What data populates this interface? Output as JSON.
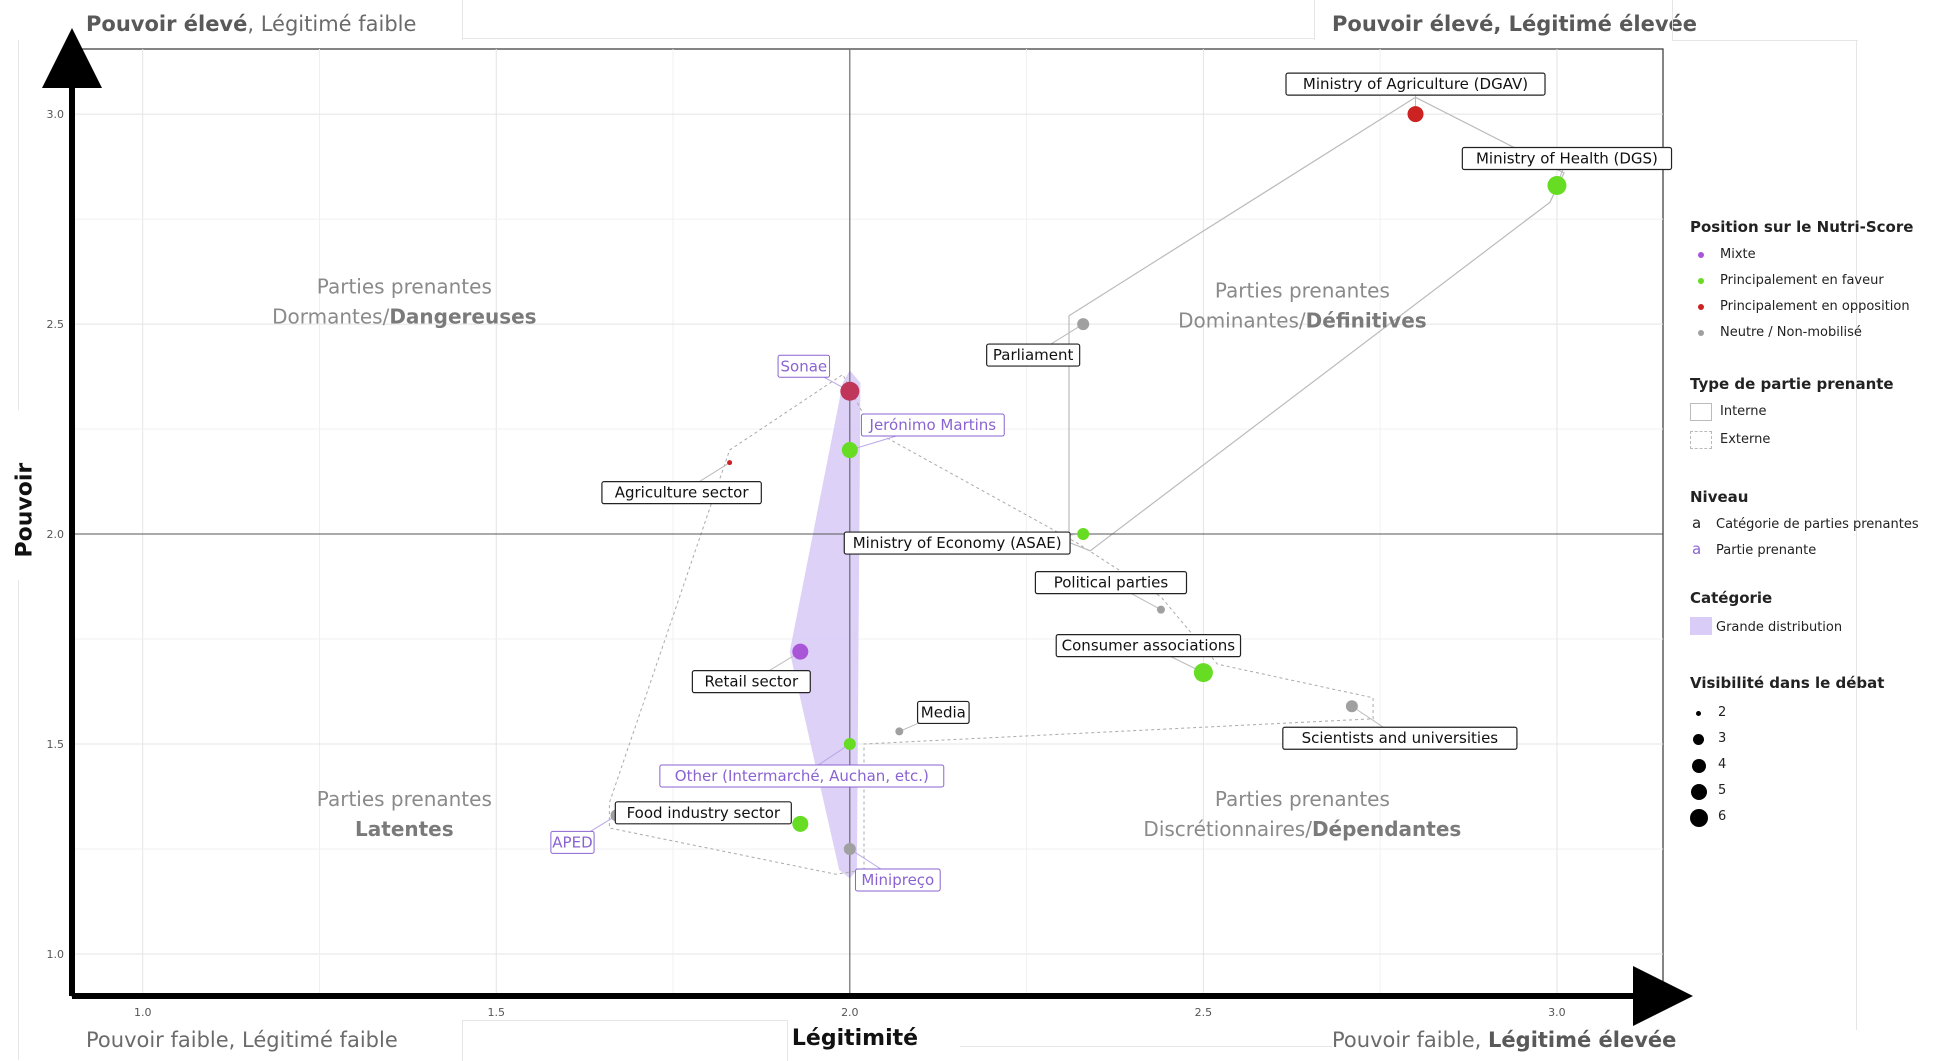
{
  "corners": {
    "top_left": {
      "strong": "Pouvoir élevé",
      "rest": ", Légitimé faible"
    },
    "top_right": {
      "strong": "Pouvoir élevé, Légitimé élevée",
      "rest": ""
    },
    "bottom_left": {
      "strong": "",
      "rest": "Pouvoir faible, Légitimé faible"
    },
    "bottom_right": {
      "prefix": "Pouvoir faible, ",
      "strong": "Légitimé élevée"
    }
  },
  "quadrant_labels": [
    {
      "id": "tl",
      "line1": "Parties prenantes",
      "line2_a": "Dormantes/",
      "line2_b": "Dangereuses"
    },
    {
      "id": "tr",
      "line1": "Parties prenantes",
      "line2_a": "Dominantes/",
      "line2_b": "Définitives"
    },
    {
      "id": "bl",
      "line1": "Parties prenantes",
      "line2_a": "",
      "line2_b": "Latentes"
    },
    {
      "id": "br",
      "line1": "Parties prenantes",
      "line2_a": "Discrétionnaires/",
      "line2_b": "Dépendantes"
    }
  ],
  "colors": {
    "mixte": "#a855d8",
    "faveur": "#66dd22",
    "opposition": "#cc2222",
    "neutre": "#a0a0a0",
    "grande_distribution": "#d9ccf7",
    "partie_prenante_text": "#8a63d2"
  },
  "chart_data": {
    "type": "scatter",
    "xlabel": "Légitimité",
    "ylabel": "Pouvoir",
    "xlim": [
      0.9,
      3.15
    ],
    "ylim": [
      0.9,
      3.155
    ],
    "x_ticks": [
      "1.0",
      "1.5",
      "2.0",
      "2.5",
      "3.0"
    ],
    "y_ticks": [
      "1.0",
      "1.5",
      "2.0",
      "2.5",
      "3.0"
    ],
    "x_tick_values": [
      1.0,
      1.5,
      2.0,
      2.5,
      3.0
    ],
    "y_tick_values": [
      1.0,
      1.5,
      2.0,
      2.5,
      3.0
    ],
    "reference_x": 2.0,
    "reference_y": 2.0,
    "points": [
      {
        "label": "Ministry of Agriculture (DGAV)",
        "x": 2.8,
        "y": 3.0,
        "position": "opposition",
        "visibility": 4,
        "level": "categorie"
      },
      {
        "label": "Ministry of Health (DGS)",
        "x": 3.0,
        "y": 2.83,
        "position": "faveur",
        "visibility": 5,
        "level": "categorie"
      },
      {
        "label": "Parliament",
        "x": 2.33,
        "y": 2.5,
        "position": "neutre",
        "visibility": 3,
        "level": "categorie"
      },
      {
        "label": "Ministry of Economy (ASAE)",
        "x": 2.33,
        "y": 2.0,
        "position": "faveur",
        "visibility": 3,
        "level": "categorie"
      },
      {
        "label": "Political parties",
        "x": 2.44,
        "y": 1.82,
        "position": "neutre",
        "visibility": 2,
        "level": "categorie"
      },
      {
        "label": "Consumer associations",
        "x": 2.5,
        "y": 1.67,
        "position": "faveur",
        "visibility": 5,
        "level": "categorie"
      },
      {
        "label": "Scientists and universities",
        "x": 2.71,
        "y": 1.59,
        "position": "neutre",
        "visibility": 3,
        "level": "categorie"
      },
      {
        "label": "Media",
        "x": 2.07,
        "y": 1.53,
        "position": "neutre",
        "visibility": 2,
        "level": "categorie"
      },
      {
        "label": "Agriculture sector",
        "x": 1.83,
        "y": 2.17,
        "position": "opposition",
        "visibility": 1,
        "level": "categorie"
      },
      {
        "label": "Retail sector",
        "x": 1.93,
        "y": 1.72,
        "position": "mixte",
        "visibility": 4,
        "level": "categorie"
      },
      {
        "label": "Food industry sector",
        "x": 1.93,
        "y": 1.31,
        "position": "faveur",
        "visibility": 4,
        "level": "categorie"
      },
      {
        "label": "APED",
        "x": 1.67,
        "y": 1.33,
        "position": "neutre",
        "visibility": 3,
        "level": "partie"
      },
      {
        "label": "Sonae",
        "x": 2.0,
        "y": 2.34,
        "position": "opposition",
        "visibility": 5,
        "level": "partie"
      },
      {
        "label": "Jerónimo Martins",
        "x": 2.0,
        "y": 2.2,
        "position": "faveur",
        "visibility": 4,
        "level": "partie"
      },
      {
        "label": "Other (Intermarché, Auchan, etc.)",
        "x": 2.0,
        "y": 1.5,
        "position": "faveur",
        "visibility": 3,
        "level": "partie"
      },
      {
        "label": "Minipreço",
        "x": 2.0,
        "y": 1.25,
        "position": "neutre",
        "visibility": 3,
        "level": "partie"
      }
    ],
    "legend": {
      "position_title": "Position sur le Nutri-Score",
      "position_items": [
        {
          "key": "mixte",
          "label": "Mixte"
        },
        {
          "key": "faveur",
          "label": "Principalement en faveur"
        },
        {
          "key": "opposition",
          "label": "Principalement en opposition"
        },
        {
          "key": "neutre",
          "label": "Neutre / Non-mobilisé"
        }
      ],
      "type_title": "Type de partie prenante",
      "type_items": [
        "Interne",
        "Externe"
      ],
      "niveau_title": "Niveau",
      "niveau_items": [
        {
          "glyph": "a",
          "label": "Catégorie de parties prenantes"
        },
        {
          "glyph": "a",
          "label": "Partie prenante"
        }
      ],
      "categorie_title": "Catégorie",
      "categorie_items": [
        "Grande distribution"
      ],
      "visibilite_title": "Visibilité dans le débat",
      "visibilite_items": [
        "2",
        "3",
        "4",
        "5",
        "6"
      ]
    }
  }
}
